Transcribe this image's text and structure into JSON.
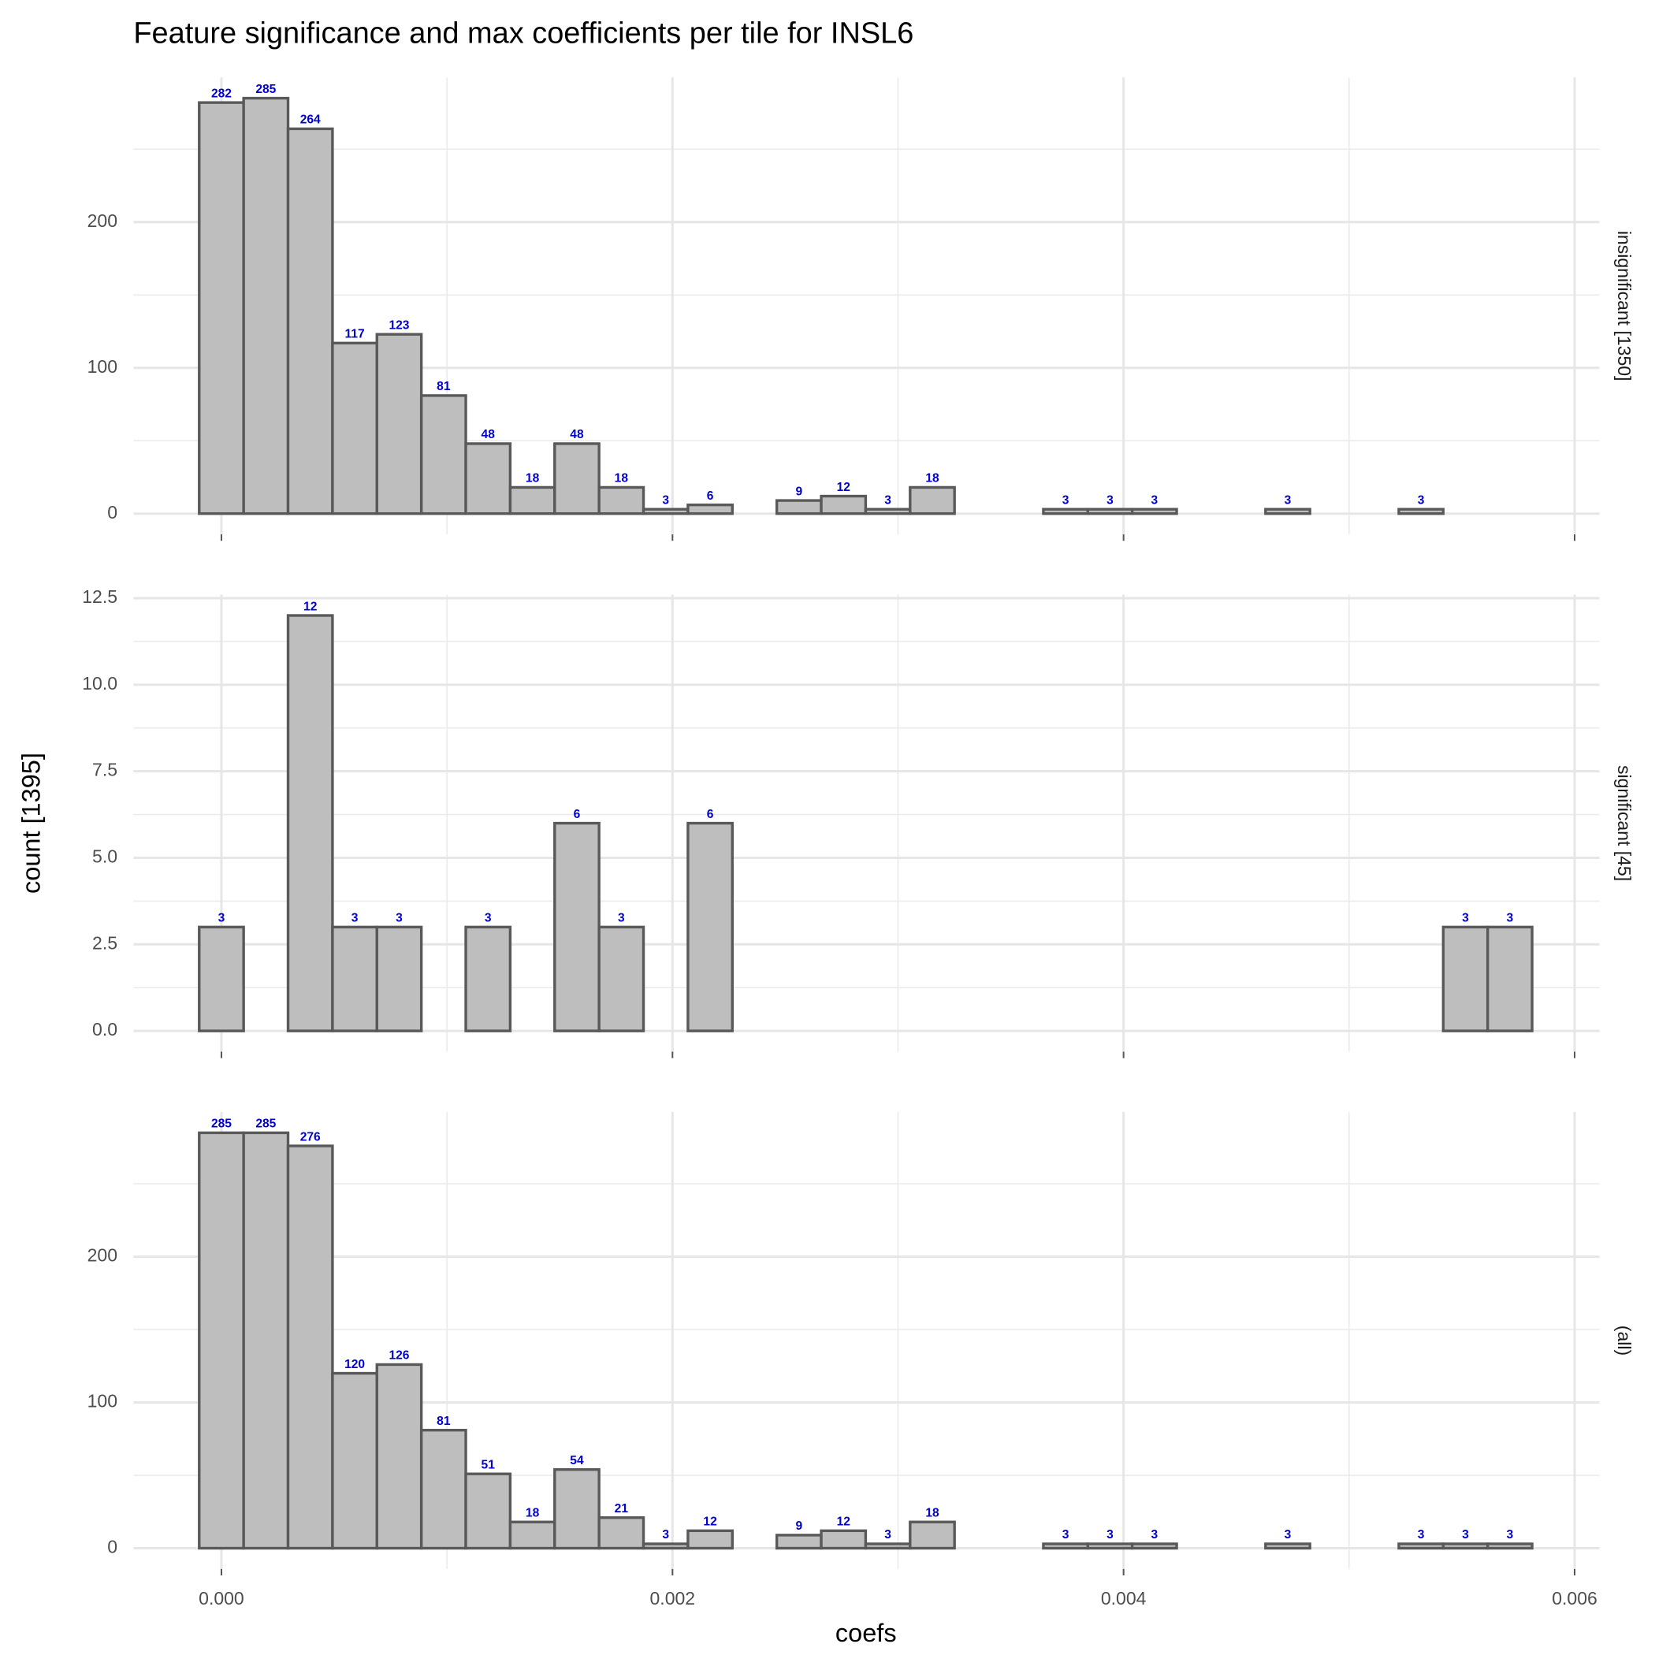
{
  "chart_data": {
    "type": "histogram",
    "title": "Feature significance and max coefficients per tile for INSL6",
    "x_label": "coefs",
    "y_label": "count [1395]",
    "bins": [
      -9.85e-05,
      9.85e-05,
      0.0002955,
      0.0004925,
      0.0006895,
      0.0008865,
      0.0010835,
      0.0012805,
      0.0014775,
      0.0016745,
      0.0018715,
      0.0020685,
      0.0022655,
      0.0024625,
      0.0026595,
      0.0028565,
      0.0030535,
      0.0032505,
      0.0034475,
      0.0036445,
      0.0038415,
      0.0040385,
      0.0042355,
      0.0044325,
      0.0046295,
      0.0048265,
      0.0050235,
      0.0052205,
      0.0054175,
      0.0056145,
      0.0058115
    ],
    "xlim": [
      -0.00039,
      0.00611
    ],
    "xticks": [
      {
        "value": 0,
        "label": "0.000"
      },
      {
        "value": 0.002,
        "label": "0.002"
      },
      {
        "value": 0.004,
        "label": "0.004"
      },
      {
        "value": 0.006,
        "label": "0.006"
      }
    ],
    "x_minor_ticks": [
      0.001,
      0.003,
      0.005
    ],
    "color": "#bebebe",
    "edge_color": "#595959",
    "label_color": "#0000cc",
    "grid": true,
    "facets": [
      {
        "strip": "insignificant [1350]",
        "values": [
          282,
          285,
          264,
          117,
          123,
          81,
          48,
          18,
          48,
          18,
          3,
          6,
          0,
          9,
          12,
          3,
          18,
          0,
          0,
          3,
          3,
          3,
          0,
          0,
          3,
          0,
          0,
          3,
          0,
          0
        ],
        "ylim": [
          -14.25,
          299.25
        ],
        "yticks": [
          0,
          100,
          200
        ],
        "y_minor_ticks": [
          50,
          150,
          250
        ]
      },
      {
        "strip": "significant [45]",
        "values": [
          3,
          0,
          12,
          3,
          3,
          0,
          3,
          0,
          6,
          3,
          0,
          6,
          0,
          0,
          0,
          0,
          0,
          0,
          0,
          0,
          0,
          0,
          0,
          0,
          0,
          0,
          0,
          0,
          3,
          3
        ],
        "ylim": [
          -0.6,
          12.6
        ],
        "yticks": [
          {
            "value": 0,
            "label": "0.0"
          },
          2.5,
          {
            "value": 5,
            "label": "5.0"
          },
          7.5,
          {
            "value": 10,
            "label": "10.0"
          },
          12.5
        ],
        "y_minor_ticks": [
          1.25,
          3.75,
          6.25,
          8.75,
          11.25
        ]
      },
      {
        "strip": "(all)",
        "values": [
          285,
          285,
          276,
          120,
          126,
          81,
          51,
          18,
          54,
          21,
          3,
          12,
          0,
          9,
          12,
          3,
          18,
          0,
          0,
          3,
          3,
          3,
          0,
          0,
          3,
          0,
          0,
          3,
          3,
          3
        ],
        "ylim": [
          -14.25,
          299.25
        ],
        "yticks": [
          0,
          100,
          200
        ],
        "y_minor_ticks": [
          50,
          150,
          250
        ]
      }
    ]
  }
}
